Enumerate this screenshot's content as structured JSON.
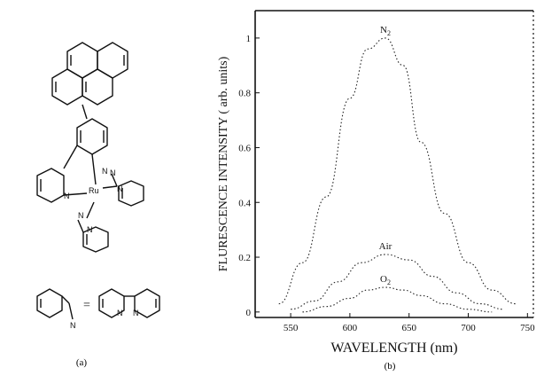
{
  "panels": {
    "a_label": "(a)",
    "b_label": "(b)"
  },
  "molecule": {
    "atoms": {
      "ru": "Ru",
      "n": "N"
    },
    "equals_sign": "="
  },
  "chart_data": {
    "type": "line",
    "title": "",
    "xlabel": "WAVELENGTH (nm)",
    "ylabel": "FLURESCENCE INTENSITY ( arb. units)",
    "xlim": [
      520,
      755
    ],
    "ylim": [
      -0.02,
      1.1
    ],
    "x_ticks": [
      550,
      600,
      650,
      700,
      750
    ],
    "y_ticks": [
      0,
      0.2,
      0.4,
      0.6,
      0.8,
      1
    ],
    "x_tick_labels": [
      "550",
      "600",
      "650",
      "700",
      "750"
    ],
    "y_tick_labels": [
      "0",
      "0.2",
      "0.4",
      "0.6",
      "0.8",
      "1"
    ],
    "grid": false,
    "line_color": "#222222",
    "series": [
      {
        "name": "N2",
        "label_main": "N",
        "label_sub": "2",
        "x": [
          540,
          560,
          580,
          600,
          615,
          630,
          645,
          660,
          680,
          700,
          720,
          740
        ],
        "y": [
          0.03,
          0.18,
          0.42,
          0.78,
          0.96,
          1.0,
          0.9,
          0.62,
          0.36,
          0.18,
          0.08,
          0.03
        ]
      },
      {
        "name": "Air",
        "label_main": "Air",
        "label_sub": "",
        "x": [
          550,
          570,
          590,
          610,
          630,
          650,
          670,
          690,
          710,
          730
        ],
        "y": [
          0.01,
          0.04,
          0.11,
          0.18,
          0.21,
          0.19,
          0.13,
          0.07,
          0.03,
          0.01
        ]
      },
      {
        "name": "O2",
        "label_main": "O",
        "label_sub": "2",
        "x": [
          560,
          580,
          600,
          615,
          630,
          645,
          660,
          680,
          700,
          720
        ],
        "y": [
          0.0,
          0.02,
          0.05,
          0.08,
          0.09,
          0.08,
          0.06,
          0.03,
          0.01,
          0.0
        ]
      }
    ]
  }
}
